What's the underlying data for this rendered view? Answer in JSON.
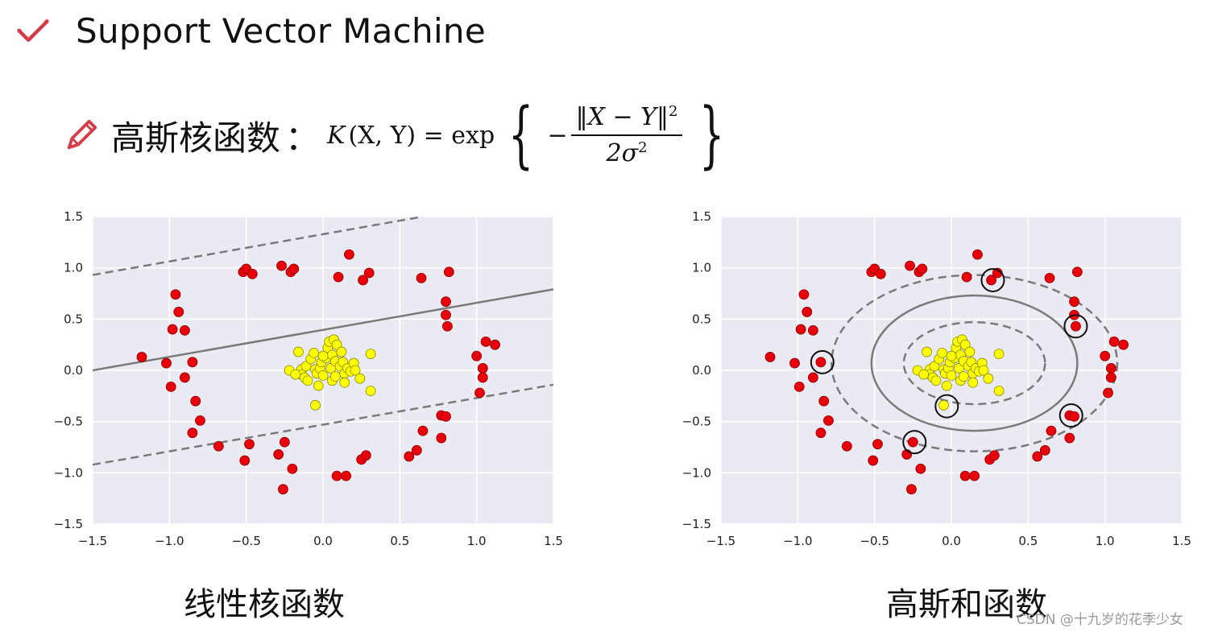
{
  "header": {
    "title": "Support Vector Machine",
    "subtitle_label": "高斯核函数",
    "subtitle_colon": "：",
    "formula": {
      "lhs": "K",
      "args": "(X, Y) = exp",
      "minus": "−",
      "numerator": "‖X − Y‖",
      "numerator_power": "2",
      "denominator": "2σ",
      "denominator_power": "2"
    }
  },
  "watermark": "CSDN @十九岁的花季少女",
  "colors": {
    "red": "#e8000b",
    "yellow": "#ffff00",
    "panel": "#eaeaf2",
    "line": "#7a7a7a"
  },
  "chart_data": [
    {
      "type": "scatter",
      "caption": "线性核函数",
      "xlim": [
        -1.5,
        1.5
      ],
      "ylim": [
        -1.5,
        1.5
      ],
      "xticks": [
        "−1.5",
        "−1.0",
        "−0.5",
        "0.0",
        "0.5",
        "1.0",
        "1.5"
      ],
      "yticks": [
        "1.5",
        "1.0",
        "0.5",
        "0.0",
        "−0.5",
        "−1.0",
        "−1.5"
      ],
      "grid": true,
      "series": [
        {
          "color": "red",
          "points": [
            [
              -1.18,
              0.13
            ],
            [
              -1.02,
              0.07
            ],
            [
              -0.98,
              0.4
            ],
            [
              -0.96,
              0.74
            ],
            [
              -0.94,
              0.57
            ],
            [
              -0.9,
              0.39
            ],
            [
              -0.99,
              -0.16
            ],
            [
              -0.9,
              -0.07
            ],
            [
              -0.85,
              0.08
            ],
            [
              -0.83,
              -0.3
            ],
            [
              -0.8,
              -0.49
            ],
            [
              -0.85,
              -0.61
            ],
            [
              -0.68,
              -0.74
            ],
            [
              -0.52,
              0.96
            ],
            [
              -0.5,
              0.99
            ],
            [
              -0.46,
              0.94
            ],
            [
              -0.51,
              -0.88
            ],
            [
              -0.48,
              -0.72
            ],
            [
              -0.27,
              1.02
            ],
            [
              -0.21,
              0.96
            ],
            [
              -0.19,
              0.99
            ],
            [
              -0.25,
              -0.7
            ],
            [
              -0.29,
              -0.82
            ],
            [
              -0.2,
              -0.96
            ],
            [
              -0.26,
              -1.16
            ],
            [
              0.17,
              1.13
            ],
            [
              0.1,
              0.91
            ],
            [
              0.26,
              0.88
            ],
            [
              0.3,
              0.95
            ],
            [
              0.09,
              -1.03
            ],
            [
              0.15,
              -1.03
            ],
            [
              0.25,
              -0.87
            ],
            [
              0.28,
              -0.83
            ],
            [
              0.64,
              0.9
            ],
            [
              0.82,
              0.96
            ],
            [
              0.8,
              0.67
            ],
            [
              0.8,
              0.54
            ],
            [
              0.81,
              0.43
            ],
            [
              0.56,
              -0.84
            ],
            [
              0.61,
              -0.78
            ],
            [
              0.65,
              -0.59
            ],
            [
              0.77,
              -0.44
            ],
            [
              0.8,
              -0.45
            ],
            [
              0.77,
              -0.66
            ],
            [
              1.0,
              0.14
            ],
            [
              1.04,
              0.02
            ],
            [
              1.04,
              -0.07
            ],
            [
              1.02,
              -0.22
            ],
            [
              1.06,
              0.28
            ],
            [
              1.12,
              0.25
            ]
          ]
        },
        {
          "color": "yellow",
          "points": [
            [
              -0.14,
              0.01
            ],
            [
              -0.14,
              -0.04
            ],
            [
              -0.12,
              -0.07
            ],
            [
              -0.11,
              0.04
            ],
            [
              -0.08,
              0.11
            ],
            [
              -0.06,
              0.17
            ],
            [
              -0.05,
              0.01
            ],
            [
              -0.04,
              -0.03
            ],
            [
              -0.02,
              0.02
            ],
            [
              -0.01,
              0.08
            ],
            [
              0.0,
              -0.05
            ],
            [
              0.02,
              0.12
            ],
            [
              0.03,
              0.22
            ],
            [
              0.04,
              0.28
            ],
            [
              0.05,
              0.02
            ],
            [
              0.06,
              0.15
            ],
            [
              0.07,
              0.3
            ],
            [
              0.08,
              0.09
            ],
            [
              0.09,
              0.25
            ],
            [
              0.11,
              0.04
            ],
            [
              0.12,
              0.18
            ],
            [
              0.13,
              0.08
            ],
            [
              0.14,
              -0.03
            ],
            [
              0.16,
              0.02
            ],
            [
              0.18,
              -0.01
            ],
            [
              0.2,
              0.07
            ],
            [
              0.21,
              0.0
            ],
            [
              -0.22,
              0.0
            ],
            [
              -0.16,
              0.18
            ],
            [
              -0.1,
              -0.1
            ],
            [
              -0.03,
              -0.15
            ],
            [
              0.06,
              -0.1
            ],
            [
              0.14,
              -0.12
            ],
            [
              -0.05,
              -0.34
            ],
            [
              0.24,
              -0.08
            ],
            [
              0.31,
              -0.2
            ],
            [
              0.31,
              0.16
            ],
            [
              -0.18,
              -0.04
            ],
            [
              0.0,
              0.14
            ],
            [
              0.08,
              -0.06
            ]
          ]
        }
      ],
      "lines": [
        {
          "style": "solid",
          "points": [
            [
              -1.5,
              0.0
            ],
            [
              1.5,
              0.79
            ]
          ]
        },
        {
          "style": "dashed",
          "points": [
            [
              -1.5,
              0.93
            ],
            [
              0.65,
              1.5
            ]
          ]
        },
        {
          "style": "dashed",
          "points": [
            [
              -1.5,
              -0.92
            ],
            [
              1.5,
              -0.14
            ]
          ]
        }
      ]
    },
    {
      "type": "scatter",
      "caption": "高斯和函数",
      "xlim": [
        -1.5,
        1.5
      ],
      "ylim": [
        -1.5,
        1.5
      ],
      "xticks": [
        "−1.5",
        "−1.0",
        "−0.5",
        "0.0",
        "0.5",
        "1.0",
        "1.5"
      ],
      "yticks": [
        "1.5",
        "1.0",
        "0.5",
        "0.0",
        "−0.5",
        "−1.0",
        "−1.5"
      ],
      "grid": true,
      "series": "same-as-first",
      "ellipses": [
        {
          "style": "solid",
          "cx": 0.15,
          "cy": 0.07,
          "rx": 0.67,
          "ry": 0.66
        },
        {
          "style": "dashed",
          "cx": 0.15,
          "cy": 0.07,
          "rx": 0.46,
          "ry": 0.4
        },
        {
          "style": "dashed",
          "cx": 0.15,
          "cy": 0.07,
          "rx": 0.93,
          "ry": 0.86
        }
      ],
      "support_vectors": [
        [
          0.27,
          0.88
        ],
        [
          0.81,
          0.43
        ],
        [
          -0.84,
          0.08
        ],
        [
          -0.03,
          -0.35
        ],
        [
          0.78,
          -0.44
        ],
        [
          -0.24,
          -0.7
        ]
      ]
    }
  ]
}
